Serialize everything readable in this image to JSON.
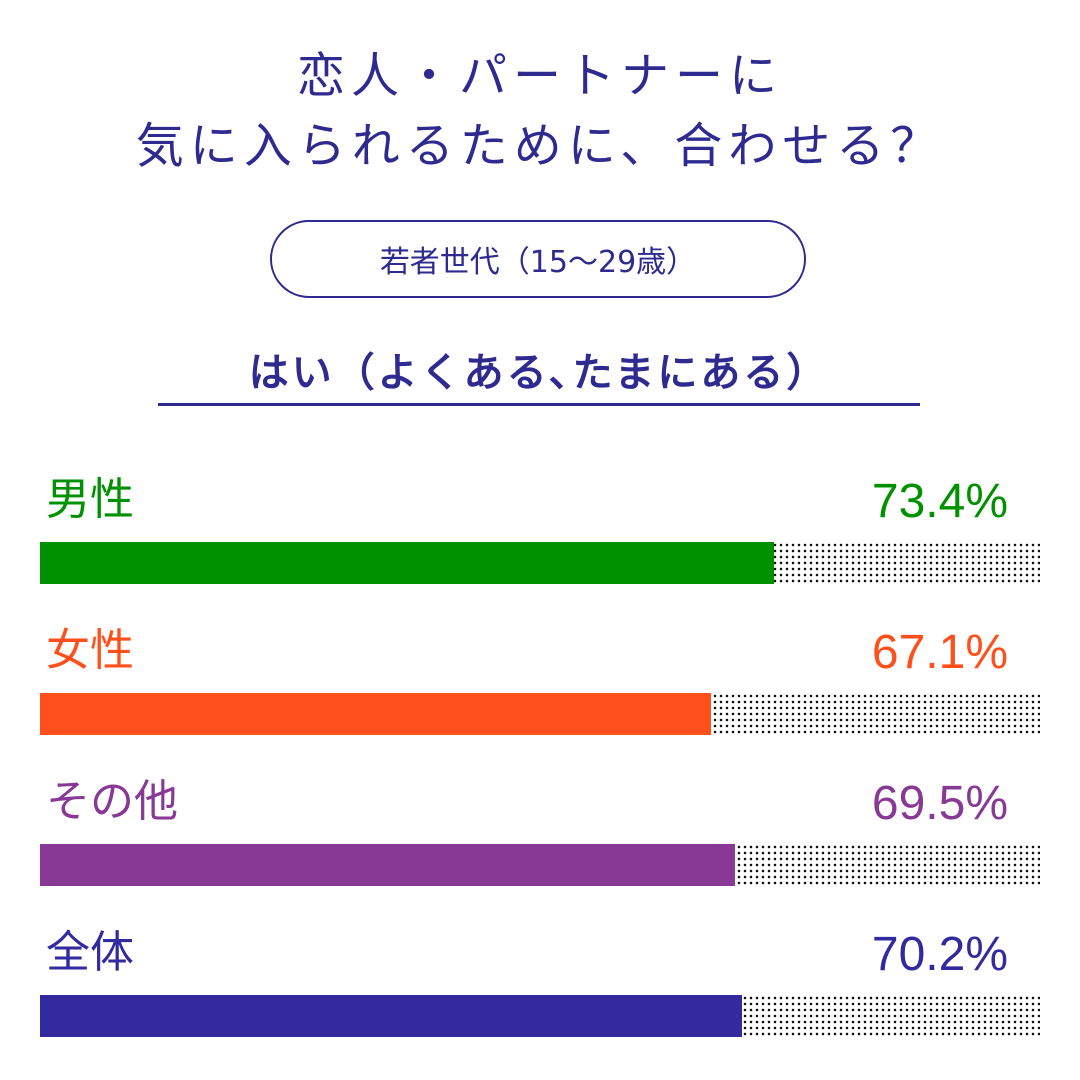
{
  "title_line1": "恋人・パートナーに",
  "title_line2": "気に入られるために、合わせる？",
  "age_group": "若者世代（15〜29歳）",
  "answer_label": "はい（よくある､たまにある）",
  "chart_data": {
    "type": "bar",
    "orientation": "horizontal",
    "ylim": [
      0,
      100
    ],
    "categories": [
      "男性",
      "女性",
      "その他",
      "全体"
    ],
    "values": [
      73.4,
      67.1,
      69.5,
      70.2
    ],
    "value_labels": [
      "73.4%",
      "67.1%",
      "69.5%",
      "70.2%"
    ],
    "colors": [
      "#009100",
      "#ff4f1a",
      "#883895",
      "#322a9e"
    ]
  }
}
